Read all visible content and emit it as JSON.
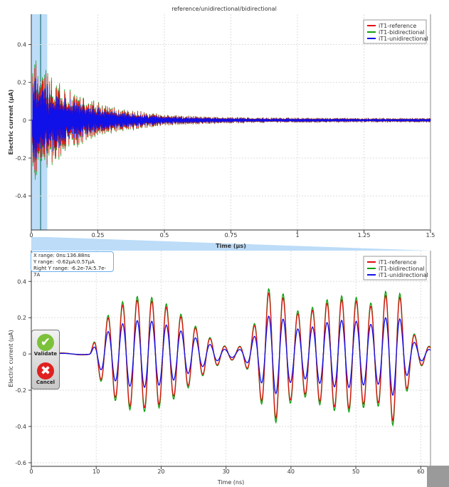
{
  "chart_data": [
    {
      "type": "line",
      "title": "reference/unidirectional/bidirectional",
      "xlabel": "Time (µs)",
      "ylabel": "Electric current (µA)",
      "xlim": [
        0,
        1.5
      ],
      "ylim": [
        -0.58,
        0.56
      ],
      "xticks": [
        "0",
        "0.25",
        "0.5",
        "0.75",
        "1",
        "1.25",
        "1.5"
      ],
      "xtick_values": [
        0,
        0.25,
        0.5,
        0.75,
        1,
        1.25,
        1.5
      ],
      "yticks": [
        "0.4",
        "0.2",
        "0",
        "-0.2",
        "-0.4"
      ],
      "ytick_values": [
        0.4,
        0.2,
        0,
        -0.2,
        -0.4
      ],
      "selection_range_us": [
        0,
        0.06
      ],
      "series": [
        {
          "name": "iT1-reference",
          "color": "#e01010"
        },
        {
          "name": "iT1-bidirectional",
          "color": "#10a010"
        },
        {
          "name": "iT1-unidirectional",
          "color": "#1010e8"
        }
      ],
      "legend": "top-right",
      "grid": true
    },
    {
      "type": "line",
      "xlabel": "Time (ns)",
      "ylabel": "Electric current (µA)",
      "xlim": [
        0,
        61.5
      ],
      "ylim": [
        -0.62,
        0.57
      ],
      "xticks": [
        "0",
        "10",
        "20",
        "30",
        "40",
        "50",
        "60"
      ],
      "xtick_values": [
        0,
        10,
        20,
        30,
        40,
        50,
        60
      ],
      "yticks": [
        "0.4",
        "0.2",
        "0",
        "-0.2",
        "-0.4",
        "-0.6"
      ],
      "ytick_values": [
        0.4,
        0.2,
        0,
        -0.2,
        -0.4,
        -0.6
      ],
      "series": [
        {
          "name": "iT1-reference",
          "color": "#e01010"
        },
        {
          "name": "iT1-bidirectional",
          "color": "#10a010"
        },
        {
          "name": "iT1-unidirectional",
          "color": "#1010e8"
        }
      ],
      "legend": "top-right",
      "grid": true
    }
  ],
  "info": {
    "x_range": "X range: 0ns:136.88ns",
    "y_range": "Y range: -0.62µA:0.57µA",
    "right_y_range": "Right Y range: -6.2e-7A:5.7e-7A"
  },
  "buttons": {
    "validate": "Validate",
    "cancel": "Cancel"
  }
}
